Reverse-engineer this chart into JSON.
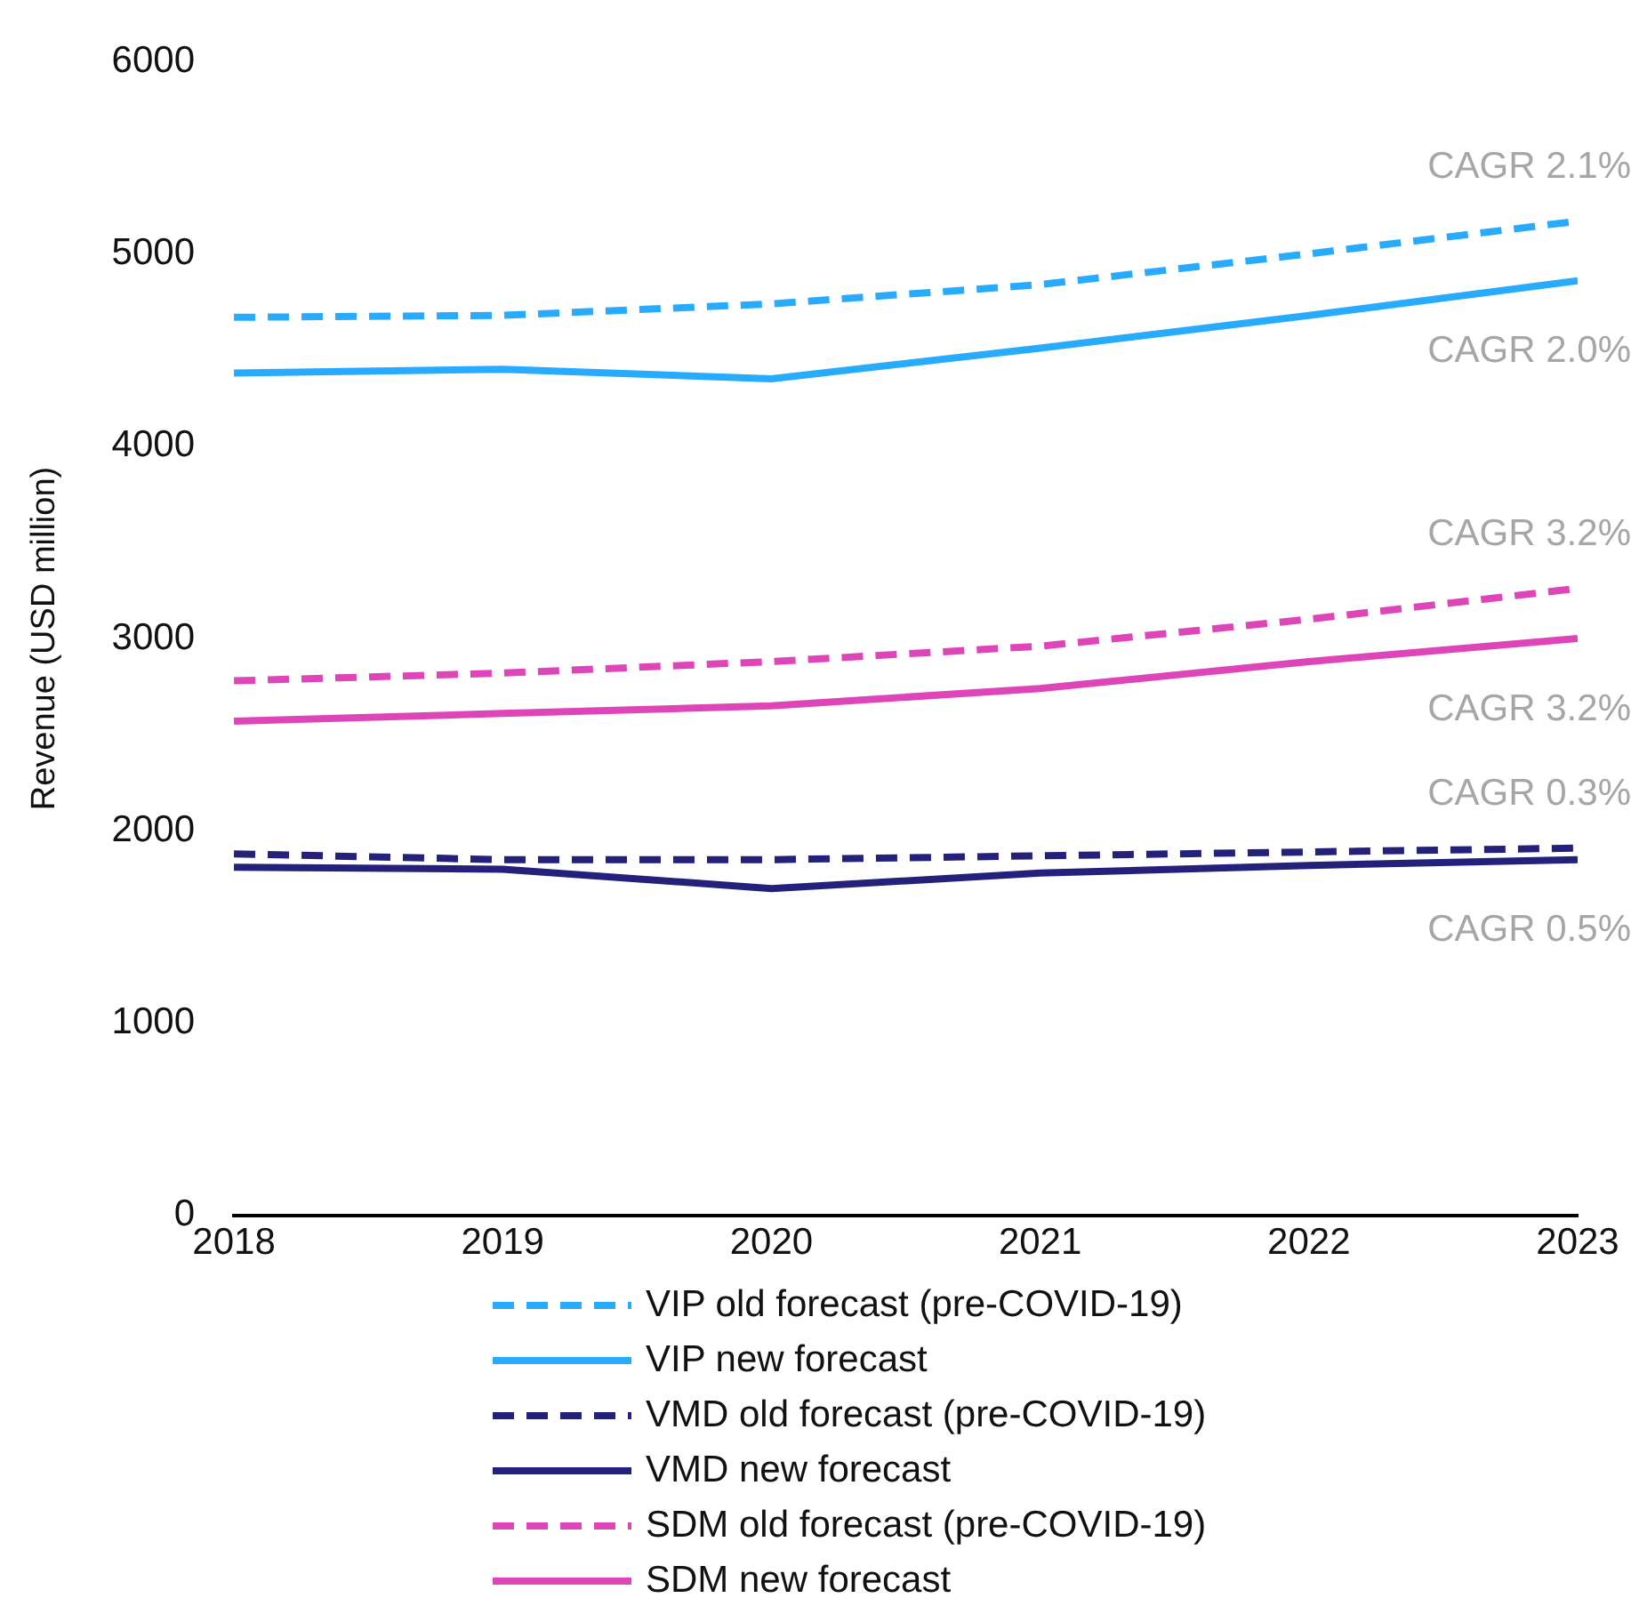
{
  "chart_data": {
    "type": "line",
    "ylabel": "Revenue (USD million)",
    "x": [
      2018,
      2019,
      2020,
      2021,
      2022,
      2023
    ],
    "xlim": [
      2018,
      2023
    ],
    "xticks": [
      2018,
      2019,
      2020,
      2021,
      2022,
      2023
    ],
    "ylim": [
      0,
      6000
    ],
    "yticks": [
      0,
      1000,
      2000,
      3000,
      4000,
      5000,
      6000
    ],
    "grid": false,
    "legend": "bottom",
    "marker": "none",
    "series": [
      {
        "name": "VIP old forecast (pre-COVID-19)",
        "color": "#29abfd",
        "line_style": "dashed",
        "values": [
          4670,
          4680,
          4740,
          4840,
          5000,
          5170
        ]
      },
      {
        "name": "VIP new forecast",
        "color": "#29abfd",
        "line_style": "solid",
        "values": [
          4380,
          4400,
          4350,
          4510,
          4680,
          4860
        ]
      },
      {
        "name": "VMD old forecast (pre-COVID-19)",
        "color": "#24217a",
        "line_style": "dashed",
        "values": [
          1880,
          1850,
          1850,
          1870,
          1890,
          1910
        ]
      },
      {
        "name": "VMD new forecast",
        "color": "#24217a",
        "line_style": "solid",
        "values": [
          1810,
          1800,
          1700,
          1780,
          1820,
          1850
        ]
      },
      {
        "name": "SDM old forecast (pre-COVID-19)",
        "color": "#dd45b8",
        "line_style": "dashed",
        "values": [
          2780,
          2820,
          2880,
          2960,
          3100,
          3260
        ]
      },
      {
        "name": "SDM new forecast",
        "color": "#dd45b8",
        "line_style": "solid",
        "values": [
          2570,
          2610,
          2650,
          2740,
          2880,
          3000
        ]
      }
    ],
    "annotations": [
      "CAGR 2.1%",
      "CAGR 2.0%",
      "CAGR 0.3%",
      "CAGR 0.5%",
      "CAGR 3.2%",
      "CAGR 3.2%"
    ]
  }
}
